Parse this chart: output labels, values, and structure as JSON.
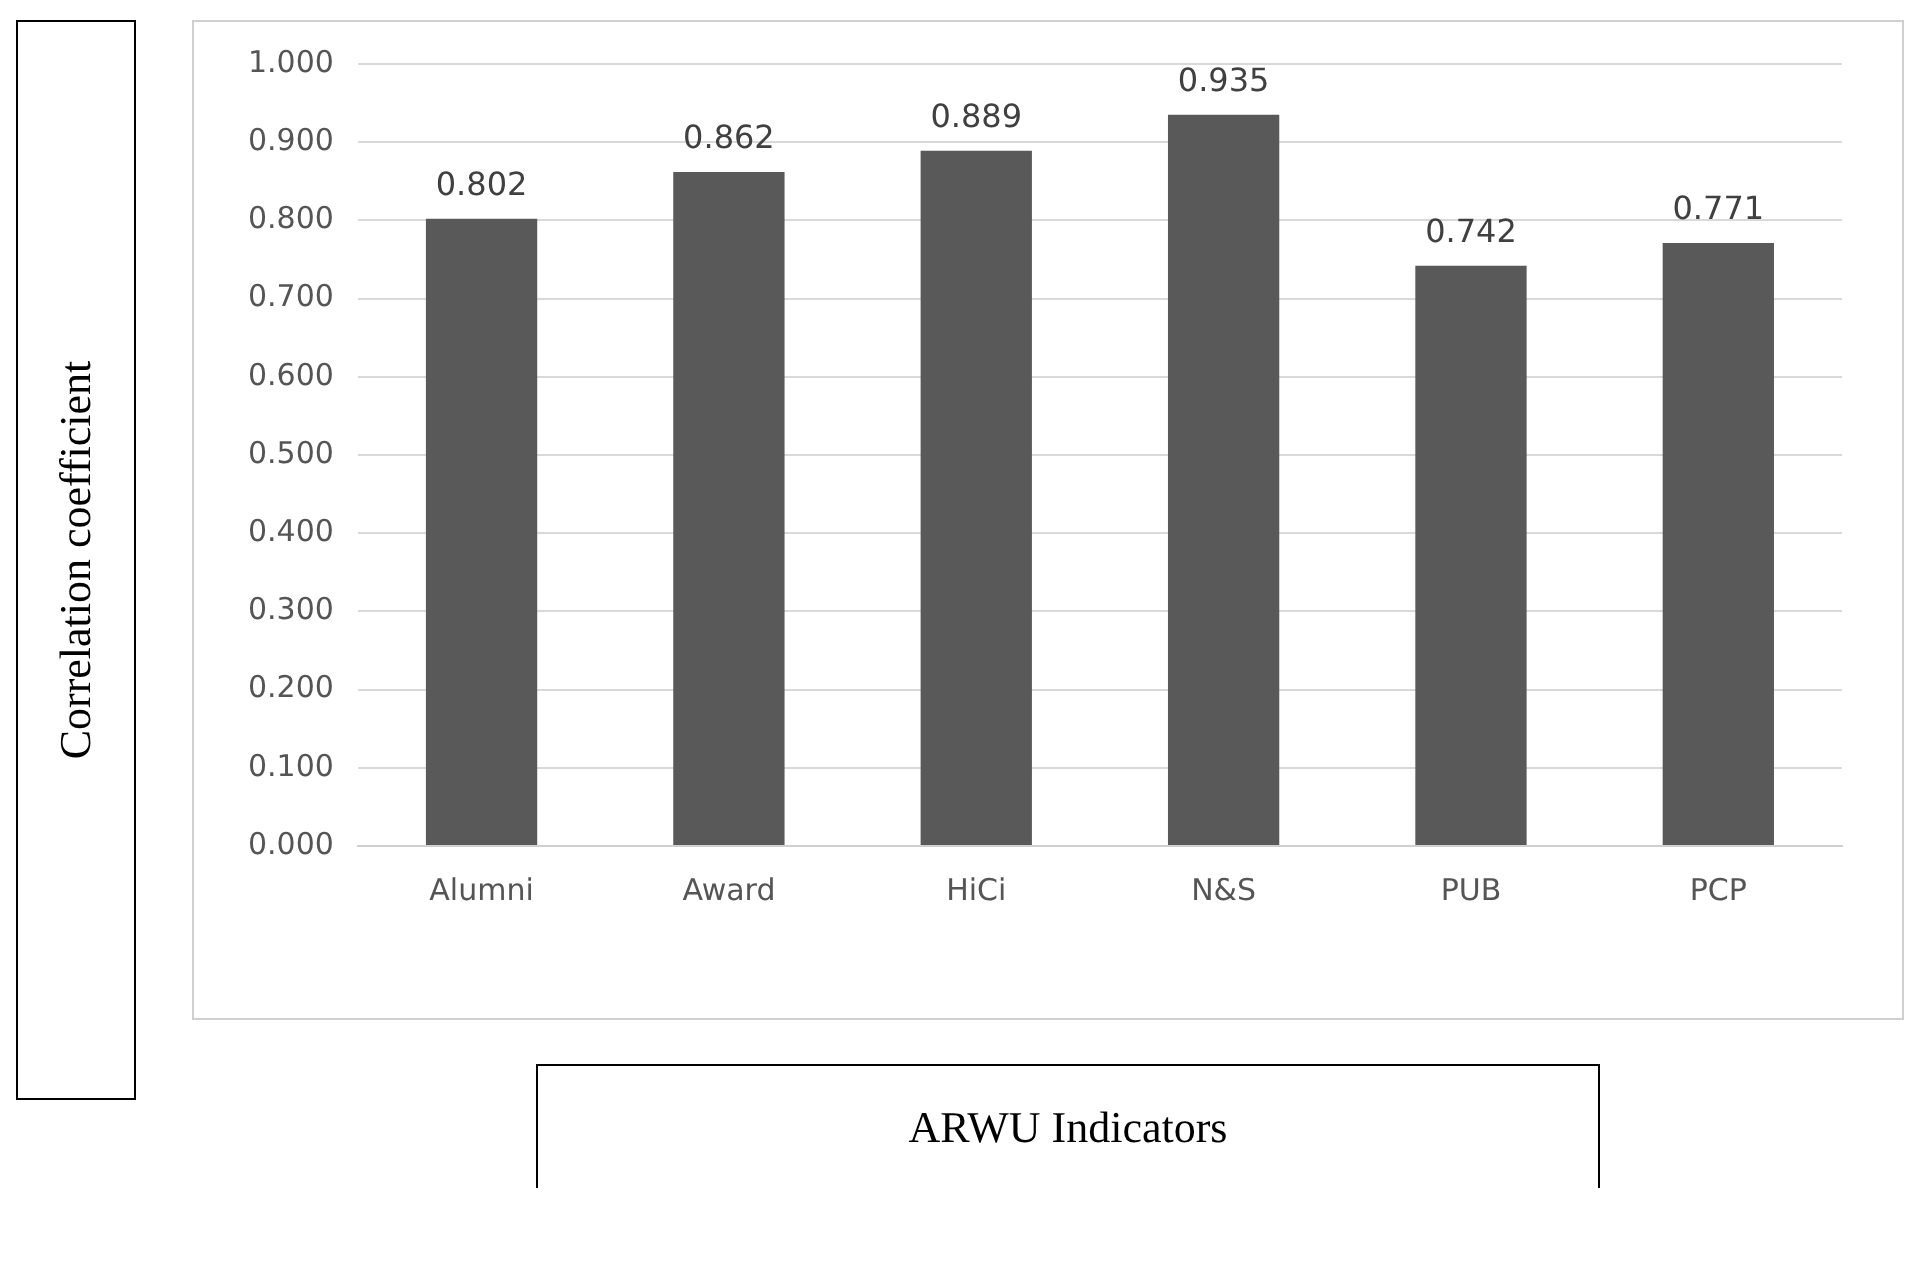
{
  "chart_data": {
    "type": "bar",
    "xlabel": "ARWU Indicators",
    "ylabel": "Correlation coefficient",
    "categories": [
      "Alumni",
      "Award",
      "HiCi",
      "N&S",
      "PUB",
      "PCP"
    ],
    "values": [
      0.802,
      0.862,
      0.889,
      0.935,
      0.742,
      0.771
    ],
    "color": "#595959",
    "ylim": [
      0,
      1
    ],
    "yticks": [
      {
        "value": 0,
        "label": "0.000"
      },
      {
        "value": 0.1,
        "label": "0.100"
      },
      {
        "value": 0.2,
        "label": "0.200"
      },
      {
        "value": 0.3,
        "label": "0.300"
      },
      {
        "value": 0.4,
        "label": "0.400"
      },
      {
        "value": 0.5,
        "label": "0.500"
      },
      {
        "value": 0.6,
        "label": "0.600"
      },
      {
        "value": 0.7,
        "label": "0.700"
      },
      {
        "value": 0.8,
        "label": "0.800"
      },
      {
        "value": 0.9,
        "label": "0.900"
      },
      {
        "value": 1,
        "label": "1.000"
      }
    ],
    "grid": "y",
    "legend": false,
    "data_labels": true
  }
}
